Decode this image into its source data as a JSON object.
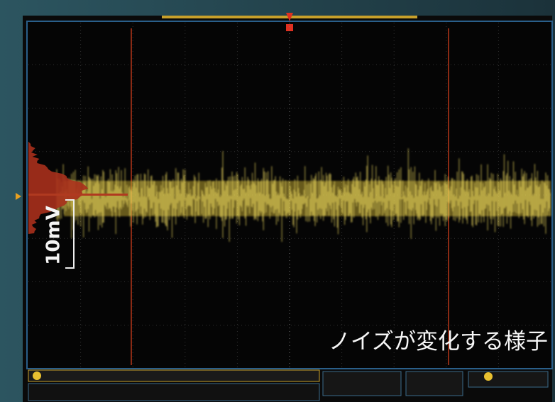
{
  "scale_label": "10mV",
  "caption": "ノイズが変化する様子"
}
